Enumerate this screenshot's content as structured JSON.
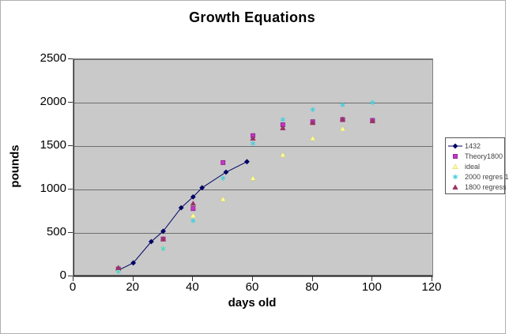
{
  "chart_data": {
    "type": "line+scatter",
    "title": "Growth Equations",
    "xlabel": "days old",
    "ylabel": "pounds",
    "xlim": [
      0,
      120
    ],
    "ylim": [
      0,
      2500
    ],
    "x_ticks": [
      0,
      20,
      40,
      60,
      80,
      100,
      120
    ],
    "y_ticks": [
      0,
      500,
      1000,
      1500,
      2000,
      2500
    ],
    "grid": "horizontal",
    "legend_position": "right",
    "plot_bg": "#c9c9c9",
    "gridline_color": "#6e6e6e",
    "series": [
      {
        "name": "1432",
        "type": "line",
        "marker": "diamond",
        "color": "#000066",
        "points": [
          [
            15,
            70
          ],
          [
            20,
            155
          ],
          [
            26,
            400
          ],
          [
            30,
            520
          ],
          [
            36,
            790
          ],
          [
            40,
            915
          ],
          [
            43,
            1020
          ],
          [
            51,
            1200
          ],
          [
            58,
            1320
          ]
        ]
      },
      {
        "name": "Theory1800",
        "type": "scatter",
        "marker": "square",
        "color": "#cc33cc",
        "marker_outline": "#7a1f7a",
        "points": [
          [
            15,
            85
          ],
          [
            30,
            430
          ],
          [
            40,
            780
          ],
          [
            50,
            1310
          ],
          [
            60,
            1620
          ],
          [
            70,
            1745
          ],
          [
            80,
            1780
          ],
          [
            90,
            1805
          ],
          [
            100,
            1795
          ]
        ]
      },
      {
        "name": "ideal",
        "type": "scatter",
        "marker": "triangle",
        "color": "#ffff99",
        "marker_outline": "#cccc66",
        "points": [
          [
            15,
            70
          ],
          [
            30,
            330
          ],
          [
            40,
            700
          ],
          [
            50,
            890
          ],
          [
            60,
            1130
          ],
          [
            70,
            1400
          ],
          [
            80,
            1590
          ],
          [
            90,
            1700
          ]
        ]
      },
      {
        "name": "2000 regres 1",
        "type": "scatter",
        "marker": "star",
        "color": "#45cfdc",
        "points": [
          [
            15,
            55
          ],
          [
            30,
            320
          ],
          [
            40,
            640
          ],
          [
            50,
            1130
          ],
          [
            60,
            1530
          ],
          [
            70,
            1805
          ],
          [
            80,
            1920
          ],
          [
            90,
            1975
          ],
          [
            100,
            2000
          ]
        ]
      },
      {
        "name": "1800 regress",
        "type": "scatter",
        "marker": "triangle",
        "color": "#993366",
        "points": [
          [
            15,
            100
          ],
          [
            30,
            430
          ],
          [
            40,
            840
          ],
          [
            60,
            1590
          ],
          [
            70,
            1710
          ],
          [
            80,
            1770
          ],
          [
            90,
            1810
          ],
          [
            100,
            1790
          ]
        ]
      }
    ]
  }
}
